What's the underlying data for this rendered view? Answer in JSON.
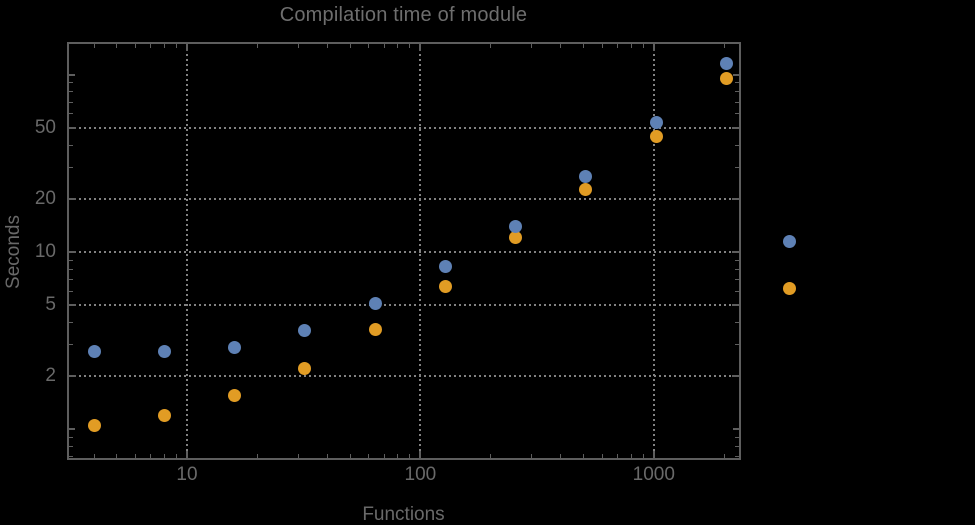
{
  "title": "Compilation time of module",
  "colors": {
    "background": "#000000",
    "frame": "#5e5e5e",
    "gridline": "#828282",
    "text": "#696969",
    "series_blue": "#5e81b5",
    "series_orange": "#e19c24"
  },
  "chart_data": {
    "type": "scatter",
    "title": "Compilation time of module",
    "xlabel": "Functions",
    "ylabel": "Seconds",
    "x_scale": "log",
    "y_scale": "log",
    "x": [
      4,
      8,
      16,
      32,
      64,
      128,
      256,
      512,
      1024,
      2048
    ],
    "series": [
      {
        "name": "series-blue",
        "color": "#5e81b5",
        "values": [
          2.75,
          2.75,
          2.9,
          3.6,
          5.1,
          8.3,
          14,
          26.5,
          54,
          115
        ]
      },
      {
        "name": "series-orange",
        "color": "#e19c24",
        "values": [
          1.05,
          1.2,
          1.55,
          2.2,
          3.65,
          6.4,
          12,
          22.5,
          45,
          95
        ]
      }
    ],
    "x_axis": {
      "major_ticks": [
        10,
        100,
        1000
      ],
      "major_tick_labels": [
        "10",
        "100",
        "1000"
      ],
      "minor_ticks": [
        4,
        5,
        6,
        7,
        8,
        9,
        20,
        30,
        40,
        50,
        60,
        70,
        80,
        90,
        200,
        300,
        400,
        500,
        600,
        700,
        800,
        900,
        2000
      ],
      "range": [
        3.1,
        2340
      ]
    },
    "y_axis": {
      "major_ticks": [
        2,
        5,
        10,
        20,
        50
      ],
      "major_tick_labels": [
        "2",
        "5",
        "10",
        "20",
        "50"
      ],
      "mid_ticks": [
        1,
        100
      ],
      "minor_ticks": [
        0.7,
        0.8,
        0.9,
        3,
        4,
        6,
        7,
        8,
        9,
        30,
        40,
        60,
        70,
        80,
        90
      ],
      "range": [
        0.69,
        150
      ]
    },
    "grid": {
      "style": "dotted",
      "x_values": [
        10,
        100,
        1000
      ],
      "y_values": [
        2,
        5,
        10,
        20,
        50
      ]
    },
    "legend": {
      "position": "right-outside",
      "entries": [
        {
          "marker_color": "#5e81b5"
        },
        {
          "marker_color": "#e19c24"
        }
      ]
    }
  }
}
